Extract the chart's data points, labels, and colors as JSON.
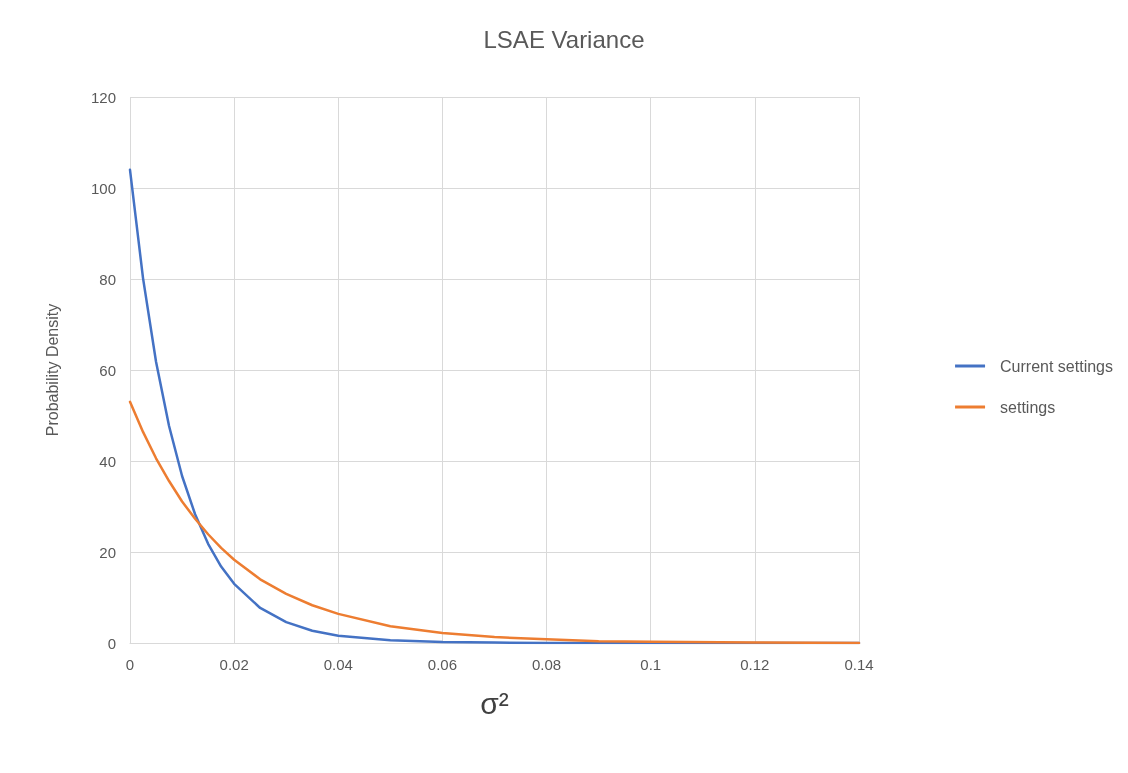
{
  "chart_data": {
    "type": "line",
    "title": "LSAE Variance",
    "xlabel": "σ²",
    "ylabel": "Probability Density",
    "x": [
      0,
      0.0025,
      0.005,
      0.0075,
      0.01,
      0.0125,
      0.015,
      0.0175,
      0.02,
      0.025,
      0.03,
      0.035,
      0.04,
      0.05,
      0.06,
      0.07,
      0.08,
      0.09,
      0.1,
      0.12,
      0.14
    ],
    "series": [
      {
        "name": "Current settings",
        "color": "#4472c4",
        "values": [
          104,
          80.2,
          61.8,
          47.7,
          36.7,
          28.3,
          21.8,
          16.8,
          13.0,
          7.7,
          4.6,
          2.7,
          1.6,
          0.6,
          0.2,
          0.1,
          0,
          0,
          0,
          0,
          0
        ]
      },
      {
        "name": "settings",
        "color": "#ed7d31",
        "values": [
          53,
          46.4,
          40.6,
          35.6,
          31.1,
          27.3,
          23.9,
          20.9,
          18.3,
          14.0,
          10.8,
          8.3,
          6.4,
          3.7,
          2.2,
          1.3,
          0.8,
          0.4,
          0.3,
          0.1,
          0
        ]
      }
    ],
    "xlim": [
      0,
      0.14
    ],
    "xticks": [
      0,
      0.02,
      0.04,
      0.06,
      0.08,
      0.1,
      0.12,
      0.14
    ],
    "ylim": [
      0,
      120
    ],
    "yticks": [
      0,
      20,
      40,
      60,
      80,
      100,
      120
    ],
    "grid": true,
    "legend": "right",
    "marker": "none",
    "line_style": "solid"
  }
}
